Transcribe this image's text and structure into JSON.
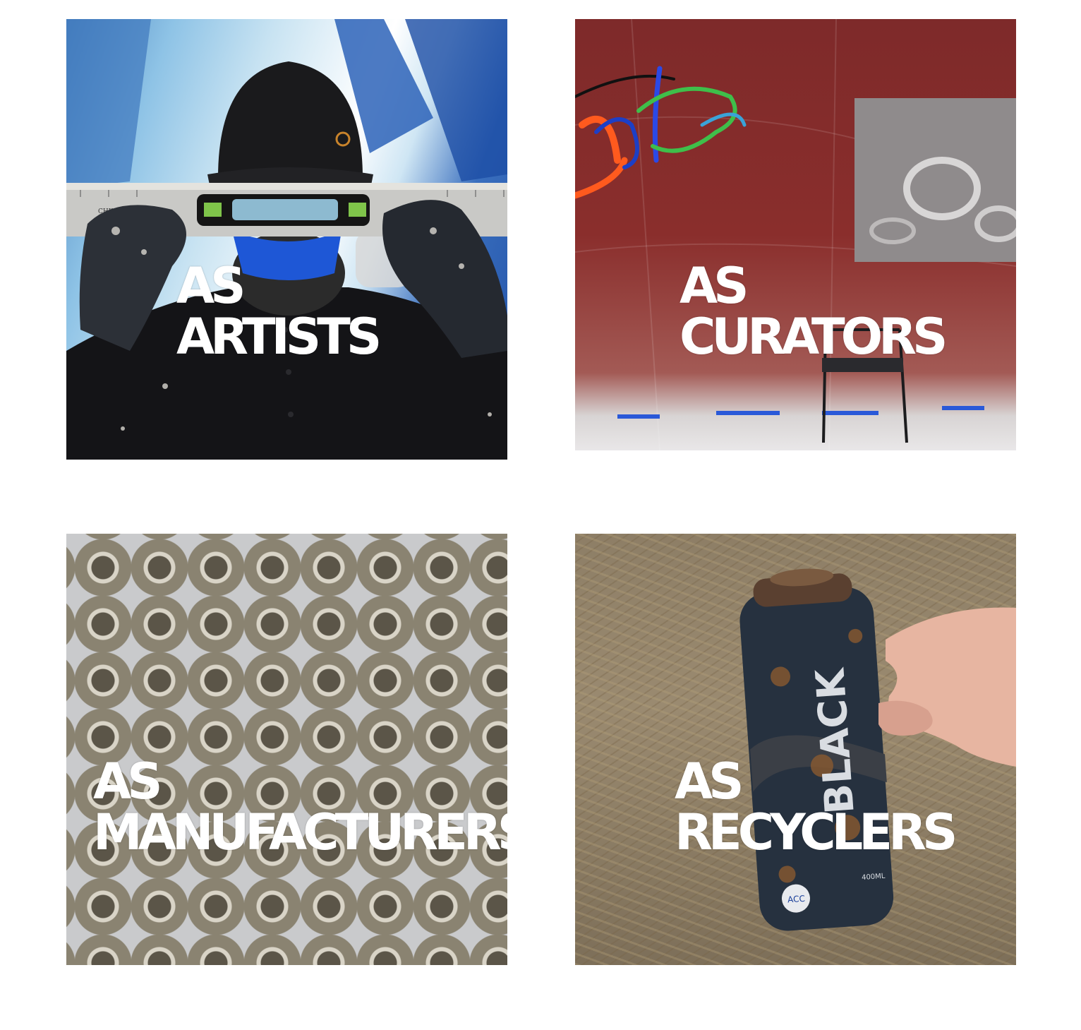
{
  "cards": [
    {
      "prefix": "AS",
      "title": "ARTISTS"
    },
    {
      "prefix": "AS",
      "title": "CURATORS"
    },
    {
      "prefix": "AS",
      "title": "MANUFACTURERS"
    },
    {
      "prefix": "AS",
      "title": "RECYCLERS"
    }
  ],
  "photos": {
    "artists": {
      "ruler_text": "CHINA"
    },
    "recyclers": {
      "can_brand": "BLACK",
      "can_badge": "ACC",
      "can_volume": "400ML"
    }
  }
}
